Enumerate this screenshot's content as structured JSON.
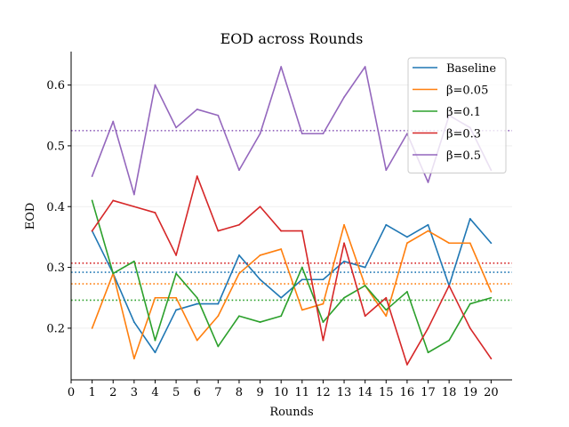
{
  "chart_data": {
    "type": "line",
    "title": "EOD across Rounds",
    "xlabel": "Rounds",
    "ylabel": "EOD",
    "x": [
      1,
      2,
      3,
      4,
      5,
      6,
      7,
      8,
      9,
      10,
      11,
      12,
      13,
      14,
      15,
      16,
      17,
      18,
      19,
      20
    ],
    "xlim": [
      0,
      21
    ],
    "xticks": [
      "0",
      "1",
      "2",
      "3",
      "4",
      "5",
      "6",
      "7",
      "8",
      "9",
      "10",
      "11",
      "12",
      "13",
      "14",
      "15",
      "16",
      "17",
      "18",
      "19",
      "20"
    ],
    "ylim": [
      0.115,
      0.655
    ],
    "yticks": [
      "0.2",
      "0.3",
      "0.4",
      "0.5",
      "0.6"
    ],
    "grid": "horizontal",
    "legend_position": "top-right",
    "series": [
      {
        "name": "Baseline",
        "color": "#1f77b4",
        "values": [
          0.36,
          0.29,
          0.21,
          0.16,
          0.23,
          0.24,
          0.24,
          0.32,
          0.28,
          0.25,
          0.28,
          0.28,
          0.31,
          0.3,
          0.37,
          0.35,
          0.37,
          0.27,
          0.38,
          0.34
        ],
        "mean": 0.292
      },
      {
        "name": "β=0.05",
        "color": "#ff7f0e",
        "values": [
          0.2,
          0.29,
          0.15,
          0.25,
          0.25,
          0.18,
          0.22,
          0.29,
          0.32,
          0.33,
          0.23,
          0.24,
          0.37,
          0.27,
          0.22,
          0.34,
          0.36,
          0.34,
          0.34,
          0.26
        ],
        "mean": 0.273
      },
      {
        "name": "β=0.1",
        "color": "#2ca02c",
        "values": [
          0.41,
          0.29,
          0.31,
          0.18,
          0.29,
          0.25,
          0.17,
          0.22,
          0.21,
          0.22,
          0.3,
          0.21,
          0.25,
          0.27,
          0.23,
          0.26,
          0.16,
          0.18,
          0.24,
          0.25
        ],
        "mean": 0.246
      },
      {
        "name": "β=0.3",
        "color": "#d62728",
        "values": [
          0.36,
          0.41,
          0.4,
          0.39,
          0.32,
          0.45,
          0.36,
          0.37,
          0.4,
          0.36,
          0.36,
          0.18,
          0.34,
          0.22,
          0.25,
          0.14,
          0.2,
          0.27,
          0.2,
          0.15
        ],
        "mean": 0.307
      },
      {
        "name": "β=0.5",
        "color": "#9467bd",
        "values": [
          0.45,
          0.54,
          0.42,
          0.6,
          0.53,
          0.56,
          0.55,
          0.46,
          0.52,
          0.63,
          0.52,
          0.52,
          0.58,
          0.63,
          0.46,
          0.52,
          0.44,
          0.55,
          0.53,
          0.46
        ],
        "mean": 0.525
      }
    ]
  }
}
